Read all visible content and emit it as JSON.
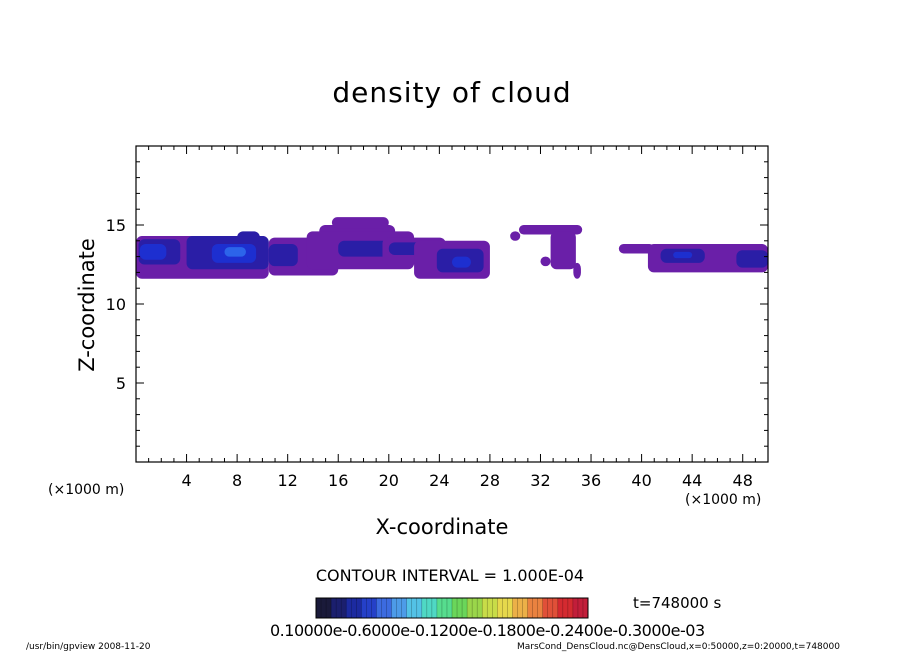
{
  "chart_data": {
    "type": "heatmap",
    "title": "density of cloud",
    "xlabel": "X-coordinate",
    "ylabel": "Z-coordinate",
    "x_unit": "(×1000 m)",
    "xlim": [
      0,
      50
    ],
    "ylim": [
      0,
      20
    ],
    "xticks": [
      4,
      8,
      12,
      16,
      20,
      24,
      28,
      32,
      36,
      40,
      44,
      48
    ],
    "yticks": [
      5,
      10,
      15
    ],
    "contour_interval_text": "CONTOUR INTERVAL = 1.000E-04",
    "time_text": "t=748000 s",
    "colorbar_tick_text": "0.10000e-0.6000e-0.1200e-0.1800e-0.2400e-0.3000e-03",
    "colorbar_colors": [
      "#1a1a3a",
      "#1b1f6e",
      "#1c2aa0",
      "#2540c8",
      "#3c6be0",
      "#4d9be8",
      "#53c2e6",
      "#4fd8c4",
      "#56dd8e",
      "#6ad65a",
      "#9ad64a",
      "#c8dc48",
      "#e6d84c",
      "#ecb048",
      "#ea8240",
      "#e05038",
      "#d42a30",
      "#c21e3a"
    ],
    "regions": [
      {
        "level": 1,
        "x0": 0.0,
        "x1": 10.5,
        "z0": 11.6,
        "z1": 14.3
      },
      {
        "level": 2,
        "x0": 0.2,
        "x1": 3.5,
        "z0": 12.5,
        "z1": 14.1
      },
      {
        "level": 3,
        "x0": 0.3,
        "x1": 2.4,
        "z0": 12.8,
        "z1": 13.8
      },
      {
        "level": 2,
        "x0": 4.0,
        "x1": 10.5,
        "z0": 12.2,
        "z1": 14.3
      },
      {
        "level": 3,
        "x0": 6.0,
        "x1": 9.5,
        "z0": 12.6,
        "z1": 13.8
      },
      {
        "level": 4,
        "x0": 7.0,
        "x1": 8.7,
        "z0": 13.0,
        "z1": 13.6
      },
      {
        "level": 2,
        "x0": 8.0,
        "x1": 9.8,
        "z0": 13.8,
        "z1": 14.6
      },
      {
        "level": 1,
        "x0": 10.5,
        "x1": 16.0,
        "z0": 11.8,
        "z1": 14.2
      },
      {
        "level": 2,
        "x0": 10.5,
        "x1": 12.8,
        "z0": 12.4,
        "z1": 13.8
      },
      {
        "level": 1,
        "x0": 14.5,
        "x1": 20.5,
        "z0": 12.6,
        "z1": 15.0
      },
      {
        "level": 1,
        "x0": 15.5,
        "x1": 20.0,
        "z0": 14.8,
        "z1": 15.5
      },
      {
        "level": 1,
        "x0": 13.5,
        "x1": 22.0,
        "z0": 12.2,
        "z1": 14.6
      },
      {
        "level": 2,
        "x0": 16.0,
        "x1": 20.0,
        "z0": 13.0,
        "z1": 14.0
      },
      {
        "level": 1,
        "x0": 19.5,
        "x1": 24.5,
        "z0": 12.5,
        "z1": 14.2
      },
      {
        "level": 2,
        "x0": 20.0,
        "x1": 23.0,
        "z0": 13.1,
        "z1": 13.9
      },
      {
        "level": 1,
        "x0": 22.0,
        "x1": 28.0,
        "z0": 11.6,
        "z1": 14.0
      },
      {
        "level": 2,
        "x0": 23.8,
        "x1": 27.5,
        "z0": 12.0,
        "z1": 13.5
      },
      {
        "level": 3,
        "x0": 25.0,
        "x1": 26.5,
        "z0": 12.3,
        "z1": 13.0
      },
      {
        "level": 1,
        "x0": 29.6,
        "x1": 30.4,
        "z0": 14.0,
        "z1": 14.6
      },
      {
        "level": 1,
        "x0": 30.3,
        "x1": 35.3,
        "z0": 14.4,
        "z1": 15.0
      },
      {
        "level": 1,
        "x0": 32.8,
        "x1": 34.8,
        "z0": 12.2,
        "z1": 14.6
      },
      {
        "level": 1,
        "x0": 32.0,
        "x1": 32.8,
        "z0": 12.4,
        "z1": 13.0
      },
      {
        "level": 1,
        "x0": 34.6,
        "x1": 35.2,
        "z0": 11.6,
        "z1": 12.6
      },
      {
        "level": 1,
        "x0": 38.2,
        "x1": 41.0,
        "z0": 13.2,
        "z1": 13.8
      },
      {
        "level": 1,
        "x0": 40.5,
        "x1": 50.0,
        "z0": 12.0,
        "z1": 13.8
      },
      {
        "level": 2,
        "x0": 41.5,
        "x1": 45.0,
        "z0": 12.6,
        "z1": 13.5
      },
      {
        "level": 3,
        "x0": 42.5,
        "x1": 44.0,
        "z0": 12.9,
        "z1": 13.3
      },
      {
        "level": 2,
        "x0": 47.5,
        "x1": 50.0,
        "z0": 12.3,
        "z1": 13.4
      }
    ]
  },
  "footer": {
    "left": "/usr/bin/gpview   2008-11-20",
    "right": "MarsCond_DensCloud.nc@DensCloud,x=0:50000,z=0:20000,t=748000"
  }
}
